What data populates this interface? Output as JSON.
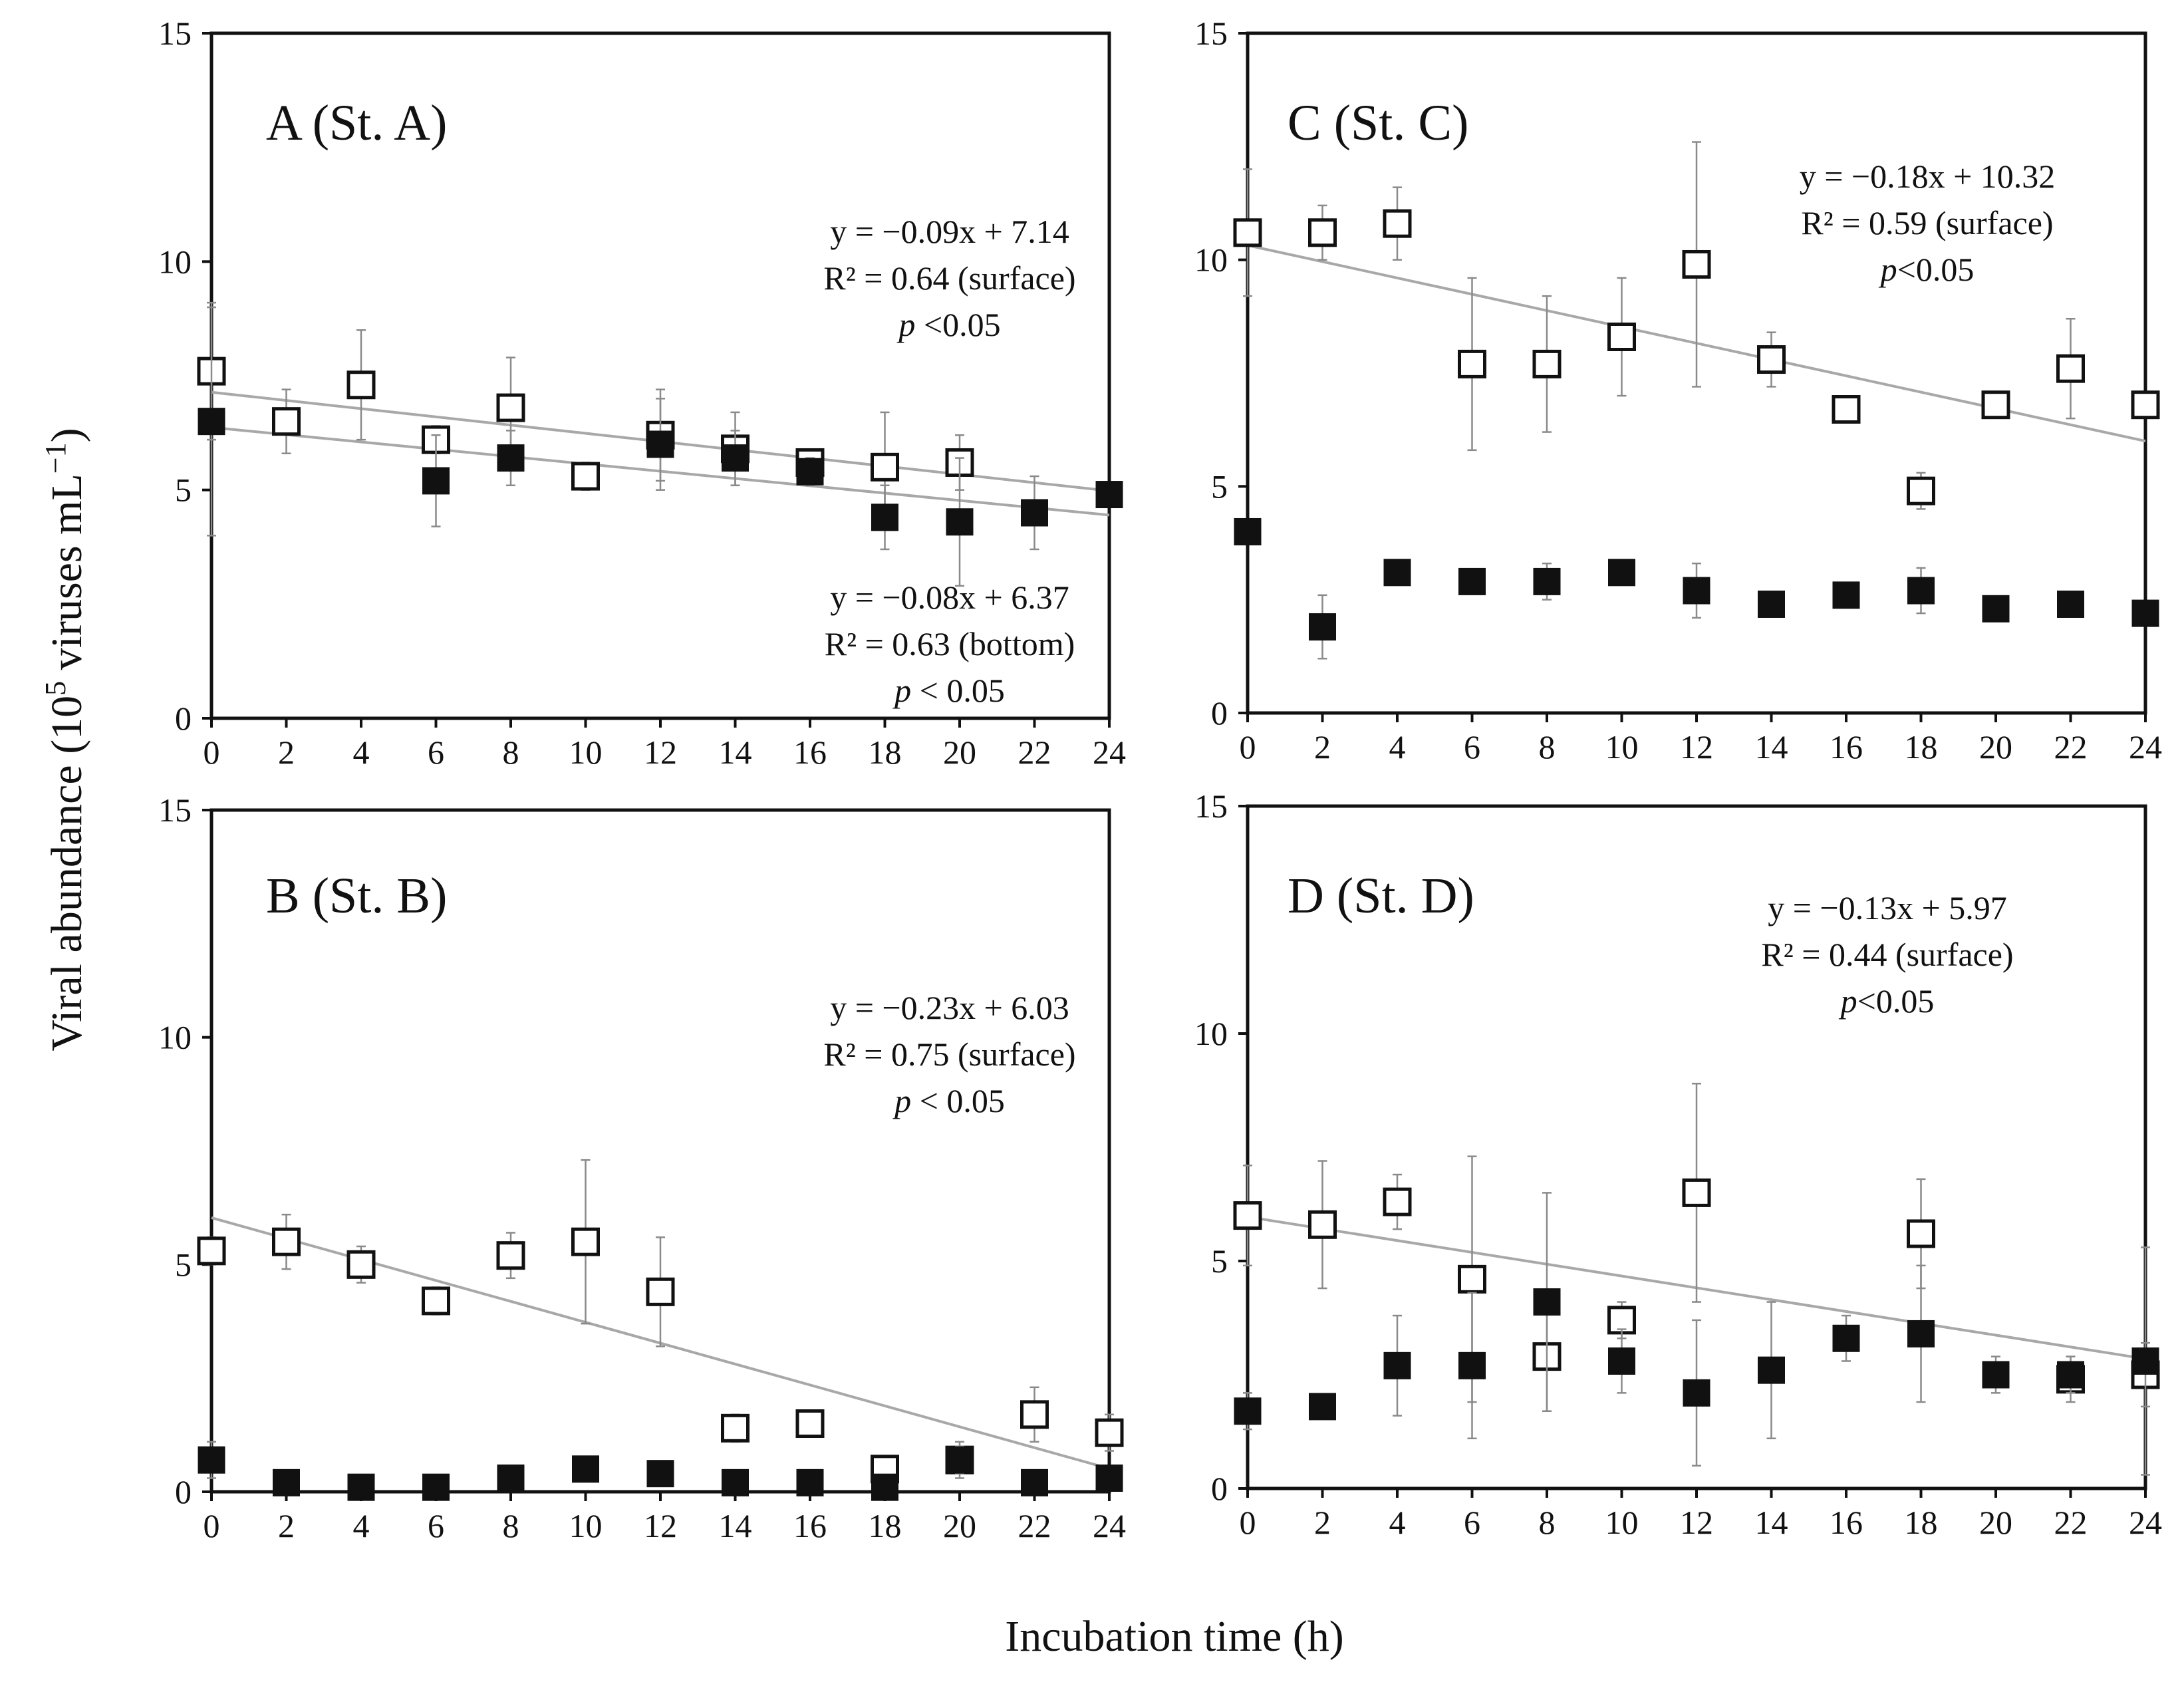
{
  "figure": {
    "ylabel_main": "Viral abundance (10",
    "ylabel_sup": "5",
    "ylabel_tail": " viruses mL",
    "ylabel_sup2": "−1",
    "ylabel_close": ")",
    "xlabel": "Incubation time (h)"
  },
  "chart_data": [
    {
      "id": "A",
      "type": "scatter",
      "title": "A (St. A)",
      "xlim": [
        0,
        24
      ],
      "ylim": [
        0,
        15
      ],
      "x_ticks": [
        0,
        2,
        4,
        6,
        8,
        10,
        12,
        14,
        16,
        18,
        20,
        22,
        24
      ],
      "y_ticks": [
        0,
        5,
        10,
        15
      ],
      "series": [
        {
          "key": "surface",
          "marker": "open-square",
          "x": [
            0,
            2,
            4,
            6,
            8,
            10,
            12,
            14,
            16,
            18,
            20,
            22,
            24
          ],
          "y": [
            7.6,
            6.5,
            7.3,
            6.1,
            6.8,
            5.3,
            6.2,
            5.9,
            5.6,
            5.5,
            5.6,
            null,
            null
          ],
          "err": [
            1.5,
            0.7,
            1.2,
            0.3,
            1.1,
            0.3,
            1.0,
            0.8,
            0.2,
            1.2,
            0.6,
            null,
            null
          ]
        },
        {
          "key": "bottom",
          "marker": "filled-square",
          "x": [
            0,
            2,
            4,
            6,
            8,
            10,
            12,
            14,
            16,
            18,
            20,
            22,
            24
          ],
          "y": [
            6.5,
            null,
            null,
            5.2,
            5.7,
            null,
            6.0,
            5.7,
            5.4,
            4.4,
            4.3,
            4.5,
            4.9
          ],
          "err": [
            2.5,
            null,
            null,
            1.0,
            0.6,
            null,
            1.0,
            0.6,
            0.3,
            0.7,
            1.4,
            0.8,
            0.2
          ]
        }
      ],
      "fits": [
        {
          "series": "surface",
          "slope": -0.09,
          "intercept": 7.14,
          "lines": [
            "y = −0.09x + 7.14",
            "R² = 0.64 (surface)"
          ],
          "p_label": "p",
          "p_rest": " <0.05"
        },
        {
          "series": "bottom",
          "slope": -0.08,
          "intercept": 6.37,
          "lines": [
            "y = −0.08x + 6.37",
            "R² = 0.63 (bottom)"
          ],
          "p_label": "p",
          "p_rest": " < 0.05"
        }
      ]
    },
    {
      "id": "C",
      "type": "scatter",
      "title": "C (St. C)",
      "xlim": [
        0,
        24
      ],
      "ylim": [
        0,
        15
      ],
      "x_ticks": [
        0,
        2,
        4,
        6,
        8,
        10,
        12,
        14,
        16,
        18,
        20,
        22,
        24
      ],
      "y_ticks": [
        0,
        5,
        10,
        15
      ],
      "series": [
        {
          "key": "surface",
          "marker": "open-square",
          "x": [
            0,
            2,
            4,
            6,
            8,
            10,
            12,
            14,
            16,
            18,
            20,
            22,
            24
          ],
          "y": [
            10.6,
            10.6,
            10.8,
            7.7,
            7.7,
            8.3,
            9.9,
            7.8,
            6.7,
            4.9,
            6.8,
            7.6,
            6.8
          ],
          "err": [
            1.4,
            0.6,
            0.8,
            1.9,
            1.5,
            1.3,
            2.7,
            0.6,
            0.2,
            0.4,
            0.2,
            1.1,
            0.2
          ]
        },
        {
          "key": "bottom",
          "marker": "filled-square",
          "x": [
            0,
            2,
            4,
            6,
            8,
            10,
            12,
            14,
            16,
            18,
            20,
            22,
            24
          ],
          "y": [
            4.0,
            1.9,
            3.1,
            2.9,
            2.9,
            3.1,
            2.7,
            2.4,
            2.6,
            2.7,
            2.3,
            2.4,
            2.2
          ],
          "err": [
            0.2,
            0.7,
            0.2,
            0.1,
            0.4,
            0.2,
            0.6,
            0.1,
            0.1,
            0.5,
            0.1,
            0.2,
            0.1
          ]
        }
      ],
      "fits": [
        {
          "series": "surface",
          "slope": -0.18,
          "intercept": 10.32,
          "lines": [
            "y = −0.18x + 10.32",
            "R² = 0.59 (surface)"
          ],
          "p_label": "p",
          "p_rest": "<0.05"
        }
      ]
    },
    {
      "id": "B",
      "type": "scatter",
      "title": "B (St. B)",
      "xlim": [
        0,
        24
      ],
      "ylim": [
        0,
        15
      ],
      "x_ticks": [
        0,
        2,
        4,
        6,
        8,
        10,
        12,
        14,
        16,
        18,
        20,
        22,
        24
      ],
      "y_ticks": [
        0,
        5,
        10,
        15
      ],
      "series": [
        {
          "key": "surface",
          "marker": "open-square",
          "x": [
            0,
            2,
            4,
            6,
            8,
            10,
            12,
            14,
            16,
            18,
            20,
            22,
            24
          ],
          "y": [
            5.3,
            5.5,
            5.0,
            4.2,
            5.2,
            5.5,
            4.4,
            1.4,
            1.5,
            0.5,
            0.7,
            1.7,
            1.3
          ],
          "err": [
            0.3,
            0.6,
            0.4,
            0.3,
            0.5,
            1.8,
            1.2,
            0.3,
            0.2,
            0.2,
            0.4,
            0.6,
            0.4
          ]
        },
        {
          "key": "bottom",
          "marker": "filled-square",
          "x": [
            0,
            2,
            4,
            6,
            8,
            10,
            12,
            14,
            16,
            18,
            20,
            22,
            24
          ],
          "y": [
            0.7,
            0.2,
            0.1,
            0.1,
            0.3,
            0.5,
            0.4,
            0.2,
            0.2,
            0.1,
            0.7,
            0.2,
            0.3
          ],
          "err": [
            0.4,
            0.1,
            0.1,
            0.1,
            0.1,
            0.1,
            0.1,
            0.1,
            0.1,
            0.1,
            0.3,
            0.1,
            0.1
          ]
        }
      ],
      "fits": [
        {
          "series": "surface",
          "slope": -0.23,
          "intercept": 6.03,
          "lines": [
            "y = −0.23x + 6.03",
            "R² = 0.75 (surface)"
          ],
          "p_label": "p",
          "p_rest": " < 0.05"
        }
      ]
    },
    {
      "id": "D",
      "type": "scatter",
      "title": "D (St. D)",
      "xlim": [
        0,
        24
      ],
      "ylim": [
        0,
        15
      ],
      "x_ticks": [
        0,
        2,
        4,
        6,
        8,
        10,
        12,
        14,
        16,
        18,
        20,
        22,
        24
      ],
      "y_ticks": [
        0,
        5,
        10,
        15
      ],
      "series": [
        {
          "key": "surface",
          "marker": "open-square",
          "x": [
            0,
            2,
            4,
            6,
            8,
            10,
            12,
            14,
            16,
            18,
            20,
            22,
            24
          ],
          "y": [
            6.0,
            5.8,
            6.3,
            4.6,
            2.9,
            3.7,
            6.5,
            null,
            null,
            5.6,
            null,
            2.4,
            2.5
          ],
          "err": [
            1.1,
            1.4,
            0.6,
            2.7,
            1.2,
            0.4,
            2.4,
            null,
            null,
            1.2,
            null,
            0.5,
            0.7
          ]
        },
        {
          "key": "bottom",
          "marker": "filled-square",
          "x": [
            0,
            2,
            4,
            6,
            8,
            10,
            12,
            14,
            16,
            18,
            20,
            22,
            24
          ],
          "y": [
            1.7,
            1.8,
            2.7,
            2.7,
            4.1,
            2.8,
            2.1,
            2.6,
            3.3,
            3.4,
            2.5,
            2.5,
            2.8
          ],
          "err": [
            0.4,
            0.1,
            1.1,
            1.6,
            2.4,
            0.7,
            1.6,
            1.5,
            0.5,
            1.5,
            0.4,
            0.4,
            2.5
          ]
        }
      ],
      "fits": [
        {
          "series": "surface",
          "slope": -0.13,
          "intercept": 5.97,
          "lines": [
            "y = −0.13x + 5.97",
            "R² = 0.44 (surface)"
          ],
          "p_label": "p",
          "p_rest": "<0.05"
        }
      ]
    }
  ]
}
